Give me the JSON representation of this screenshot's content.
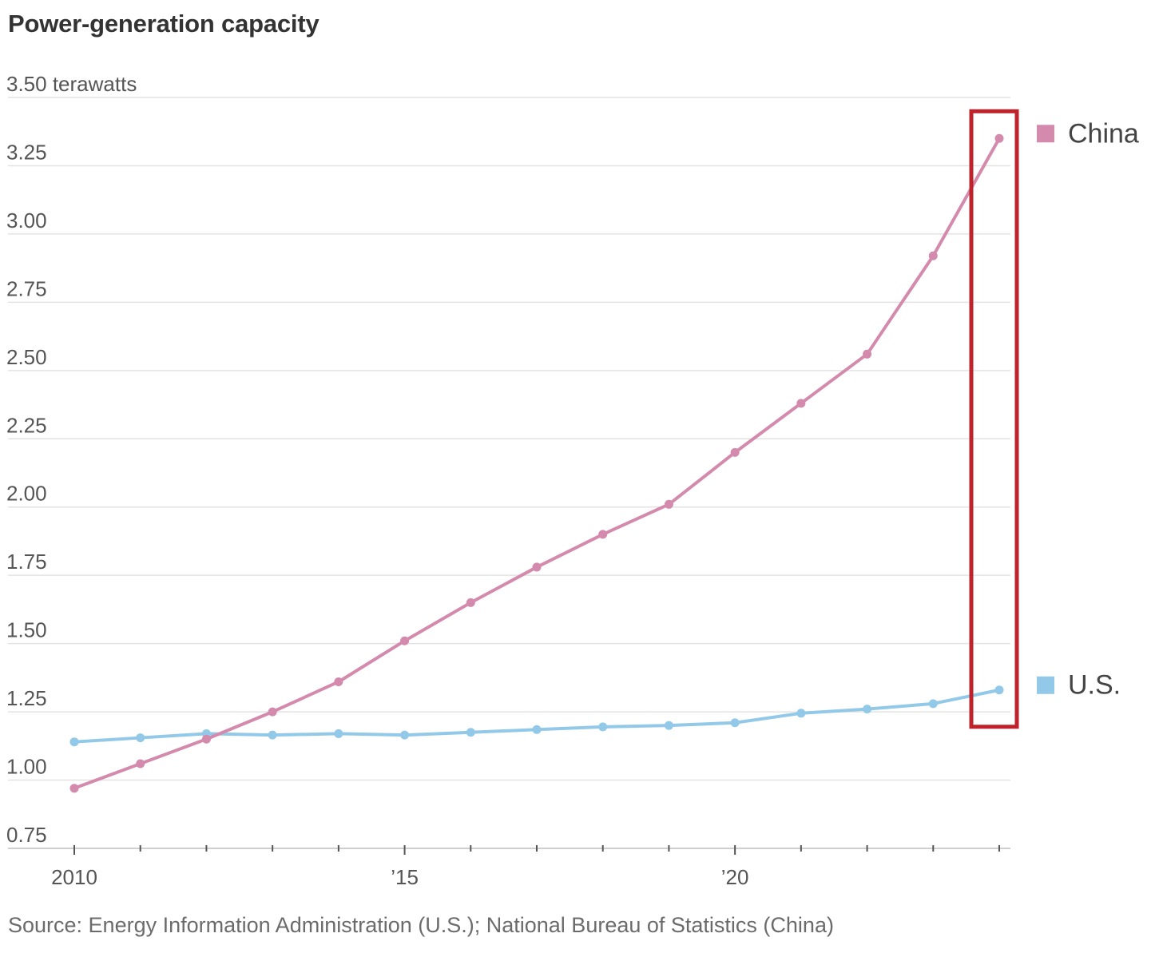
{
  "chart_data": {
    "type": "line",
    "title": "Power-generation capacity",
    "ylabel": "terawatts",
    "ylim": [
      0.75,
      3.5
    ],
    "yticks": [
      0.75,
      1.0,
      1.25,
      1.5,
      1.75,
      2.0,
      2.25,
      2.5,
      2.75,
      3.0,
      3.25,
      3.5
    ],
    "ytick_labels": [
      "0.75",
      "1.00",
      "1.25",
      "1.50",
      "1.75",
      "2.00",
      "2.25",
      "2.50",
      "2.75",
      "3.00",
      "3.25",
      "3.50 terawatts"
    ],
    "x": [
      2010,
      2011,
      2012,
      2013,
      2014,
      2015,
      2016,
      2017,
      2018,
      2019,
      2020,
      2021,
      2022,
      2023,
      2024
    ],
    "xlim": [
      2010,
      2024
    ],
    "xticks_labeled": [
      2010,
      2015,
      2020
    ],
    "xtick_labels": [
      "2010",
      "’15",
      "’20"
    ],
    "series": [
      {
        "name": "China",
        "color": "#d48aad",
        "values": [
          0.97,
          1.06,
          1.15,
          1.25,
          1.36,
          1.51,
          1.65,
          1.78,
          1.9,
          2.01,
          2.2,
          2.38,
          2.56,
          2.92,
          3.35
        ]
      },
      {
        "name": "U.S.",
        "color": "#93c9e8",
        "values": [
          1.14,
          1.155,
          1.17,
          1.165,
          1.17,
          1.165,
          1.175,
          1.185,
          1.195,
          1.2,
          1.21,
          1.245,
          1.26,
          1.28,
          1.33
        ]
      }
    ],
    "legend": "right",
    "grid": true,
    "highlight": {
      "x": 2024,
      "color": "#c0222b"
    },
    "source": "Source: Energy Information Administration (U.S.); National Bureau of Statistics (China)"
  }
}
